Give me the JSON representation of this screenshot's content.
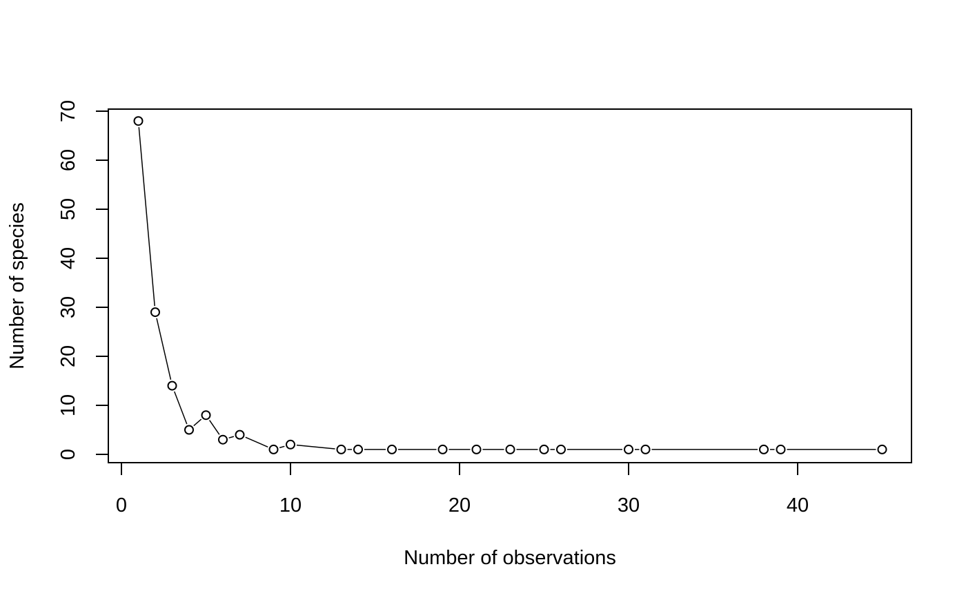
{
  "chart_data": {
    "type": "line",
    "title": "",
    "xlabel": "Number of observations",
    "ylabel": "Number of species",
    "xlim": [
      0,
      45
    ],
    "ylim": [
      0,
      70
    ],
    "x_ticks": [
      0,
      10,
      20,
      30,
      40
    ],
    "y_ticks": [
      0,
      10,
      20,
      30,
      40,
      50,
      60,
      70
    ],
    "grid": false,
    "legend": "none",
    "marker": "open-circle",
    "line_color": "#000000",
    "series": [
      {
        "x": [
          1,
          2,
          3,
          4,
          5,
          6,
          7,
          9,
          10,
          13,
          14,
          16,
          19,
          21,
          23,
          25,
          26,
          30,
          31,
          38,
          39,
          45
        ],
        "y": [
          68,
          29,
          14,
          5,
          8,
          3,
          4,
          1,
          2,
          1,
          1,
          1,
          1,
          1,
          1,
          1,
          1,
          1,
          1,
          1,
          1,
          1
        ]
      }
    ]
  }
}
